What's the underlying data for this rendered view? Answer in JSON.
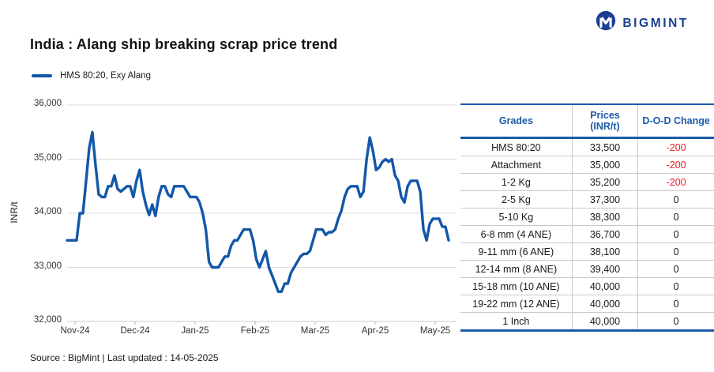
{
  "brand": {
    "name": "BIGMINT",
    "color": "#1b3e92"
  },
  "title": "India : Alang ship breaking scrap price trend",
  "legend": {
    "label": "HMS 80:20, Exy Alang",
    "color": "#1257a8"
  },
  "chart_data": {
    "type": "line",
    "title": "India : Alang ship breaking scrap price trend",
    "series_name": "HMS 80:20, Exy Alang",
    "ylabel": "INR/t",
    "ylim": [
      32000,
      36000
    ],
    "y_ticks": [
      "36,000",
      "35,000",
      "34,000",
      "33,000",
      "32,000"
    ],
    "x_ticks": [
      "Nov-24",
      "Dec-24",
      "Jan-25",
      "Feb-25",
      "Mar-25",
      "Apr-25",
      "May-25"
    ],
    "grid": "horizontal",
    "legend_position": "top-left",
    "line_color": "#1257a8",
    "values": [
      33500,
      33500,
      33500,
      33500,
      34000,
      34000,
      34600,
      35200,
      35500,
      34900,
      34350,
      34300,
      34300,
      34500,
      34500,
      34700,
      34450,
      34400,
      34450,
      34500,
      34500,
      34300,
      34600,
      34800,
      34400,
      34150,
      33970,
      34160,
      33950,
      34300,
      34500,
      34500,
      34350,
      34300,
      34500,
      34500,
      34500,
      34500,
      34400,
      34300,
      34300,
      34300,
      34200,
      34000,
      33700,
      33100,
      33000,
      33000,
      33000,
      33100,
      33200,
      33200,
      33400,
      33500,
      33500,
      33600,
      33700,
      33700,
      33700,
      33500,
      33150,
      33000,
      33150,
      33300,
      33000,
      32850,
      32700,
      32550,
      32550,
      32700,
      32700,
      32900,
      33000,
      33100,
      33200,
      33250,
      33250,
      33300,
      33500,
      33700,
      33700,
      33700,
      33600,
      33650,
      33650,
      33700,
      33900,
      34050,
      34300,
      34450,
      34500,
      34500,
      34500,
      34300,
      34400,
      35000,
      35400,
      35150,
      34800,
      34850,
      34950,
      35000,
      34950,
      35000,
      34700,
      34600,
      34300,
      34200,
      34500,
      34600,
      34600,
      34600,
      34400,
      33700,
      33500,
      33800,
      33900,
      33900,
      33900,
      33750,
      33750,
      33500
    ]
  },
  "table": {
    "headers": [
      "Grades",
      "Prices (INR/t)",
      "D-O-D Change"
    ],
    "negative_color": "#ed1c24",
    "rows": [
      {
        "grade": "HMS 80:20",
        "price": "33,500",
        "change": "-200"
      },
      {
        "grade": "Attachment",
        "price": "35,000",
        "change": "-200"
      },
      {
        "grade": "1-2 Kg",
        "price": "35,200",
        "change": "-200"
      },
      {
        "grade": "2-5 Kg",
        "price": "37,300",
        "change": "0"
      },
      {
        "grade": "5-10 Kg",
        "price": "38,300",
        "change": "0"
      },
      {
        "grade": "6-8 mm (4 ANE)",
        "price": "36,700",
        "change": "0"
      },
      {
        "grade": "9-11 mm (6 ANE)",
        "price": "38,100",
        "change": "0"
      },
      {
        "grade": "12-14 mm (8 ANE)",
        "price": "39,400",
        "change": "0"
      },
      {
        "grade": "15-18 mm (10 ANE)",
        "price": "40,000",
        "change": "0"
      },
      {
        "grade": "19-22 mm (12 ANE)",
        "price": "40,000",
        "change": "0"
      },
      {
        "grade": "1 Inch",
        "price": "40,000",
        "change": "0"
      }
    ]
  },
  "footer": {
    "text": "Source : BigMint | Last updated : 14-05-2025"
  }
}
